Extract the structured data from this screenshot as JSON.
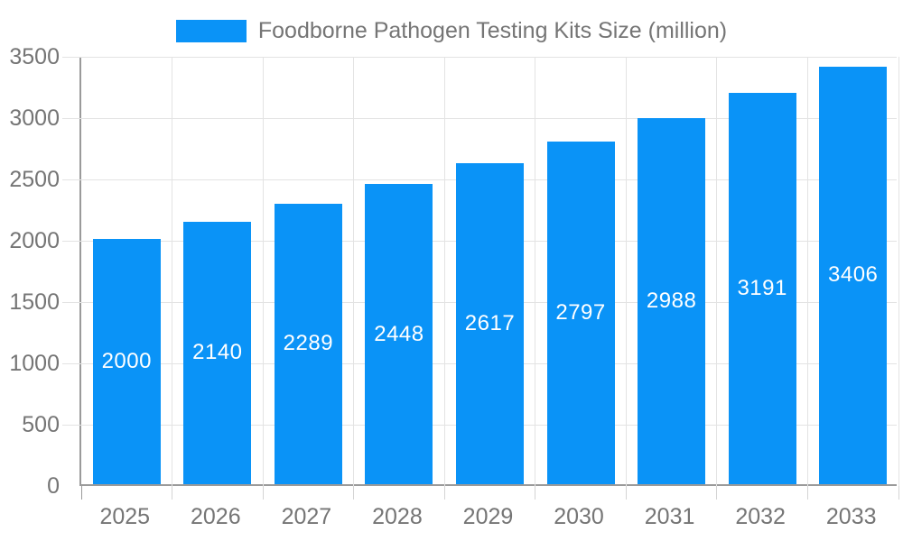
{
  "legend": {
    "label": "Foodborne Pathogen Testing Kits Size (million)"
  },
  "chart_data": {
    "type": "bar",
    "title": "Foodborne Pathogen Testing Kits Size (million)",
    "categories": [
      "2025",
      "2026",
      "2027",
      "2028",
      "2029",
      "2030",
      "2031",
      "2032",
      "2033"
    ],
    "values": [
      2000,
      2140,
      2289,
      2448,
      2617,
      2797,
      2988,
      3191,
      3406
    ],
    "xlabel": "",
    "ylabel": "",
    "ylim": [
      0,
      3500
    ],
    "ytick_interval": 500,
    "ytick_labels": [
      "0",
      "500",
      "1000",
      "1500",
      "2000",
      "2500",
      "3000",
      "3500"
    ],
    "grid": true,
    "legend_position": "top-center",
    "bar_labels_inside": true,
    "colors": {
      "bar": "#0a93f7",
      "bar_label": "#ffffff",
      "grid_line": "#e3e3e3",
      "axis_line": "#9a9a9a",
      "axis_text": "#757575"
    }
  }
}
